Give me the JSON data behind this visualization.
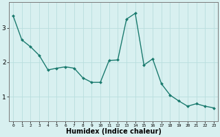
{
  "x": [
    0,
    1,
    2,
    3,
    4,
    5,
    6,
    7,
    8,
    9,
    10,
    11,
    12,
    13,
    14,
    15,
    16,
    17,
    18,
    19,
    20,
    21,
    22,
    23
  ],
  "y": [
    3.35,
    2.65,
    2.45,
    2.2,
    1.78,
    1.83,
    1.87,
    1.83,
    1.55,
    1.42,
    1.42,
    2.05,
    2.07,
    3.25,
    3.42,
    1.92,
    2.1,
    1.38,
    1.05,
    0.88,
    0.73,
    0.8,
    0.73,
    0.68
  ],
  "line_color": "#1a7a6e",
  "marker": "D",
  "marker_size": 2.0,
  "line_width": 1.0,
  "bg_color": "#d8f0f0",
  "grid_color": "#b8dede",
  "xlabel": "Humidex (Indice chaleur)",
  "xlabel_fontsize": 7.0,
  "ytick_fontsize": 6.5,
  "xtick_fontsize": 4.5,
  "yticks": [
    1,
    2,
    3
  ],
  "xlim": [
    -0.5,
    23.5
  ],
  "ylim": [
    0.3,
    3.75
  ]
}
